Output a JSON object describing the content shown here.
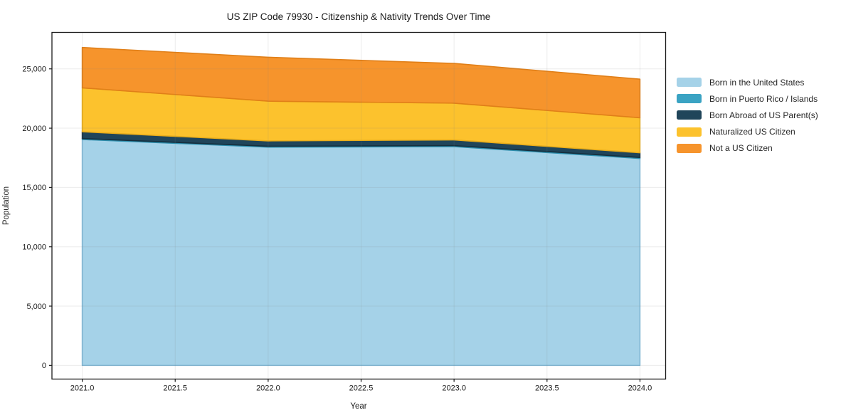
{
  "chart_data": {
    "type": "area",
    "stacked": true,
    "title": "US ZIP Code 79930 - Citizenship & Nativity Trends Over Time",
    "xlabel": "Year",
    "ylabel": "Population",
    "x": [
      2021,
      2022,
      2023,
      2024
    ],
    "series": [
      {
        "name": "Born in the United States",
        "color": "#a5d2e8",
        "edge_color": "#82bcdb",
        "values": [
          19050,
          18400,
          18450,
          17450
        ]
      },
      {
        "name": "Born in Puerto Rico / Islands",
        "color": "#3aa3c3",
        "edge_color": "#2d8fae",
        "values": [
          80,
          80,
          80,
          80
        ]
      },
      {
        "name": "Born Abroad of US Parent(s)",
        "color": "#20455a",
        "edge_color": "#152f3e",
        "values": [
          570,
          450,
          480,
          400
        ]
      },
      {
        "name": "Naturalized US Citizen",
        "color": "#fcc22d",
        "edge_color": "#e9ad1a",
        "values": [
          3700,
          3350,
          3100,
          2950
        ]
      },
      {
        "name": "Not a US Citizen",
        "color": "#f6942c",
        "edge_color": "#e07f18",
        "values": [
          3400,
          3700,
          3350,
          3250
        ]
      }
    ],
    "xticks": [
      "2021.0",
      "2021.5",
      "2022.0",
      "2022.5",
      "2023.0",
      "2023.5",
      "2024.0"
    ],
    "xtick_values": [
      2021.0,
      2021.5,
      2022.0,
      2022.5,
      2023.0,
      2023.5,
      2024.0
    ],
    "yticks": [
      "0",
      "5,000",
      "10,000",
      "15,000",
      "20,000",
      "25,000"
    ],
    "ytick_values": [
      0,
      5000,
      10000,
      15000,
      20000,
      25000
    ],
    "xlim": [
      2020.837,
      2024.138
    ],
    "ylim": [
      -1150,
      28075
    ],
    "grid": true,
    "grid_color": "rgba(130,130,130,0.16)",
    "spine_color": "#1a1a1a",
    "legend_position": "right"
  }
}
